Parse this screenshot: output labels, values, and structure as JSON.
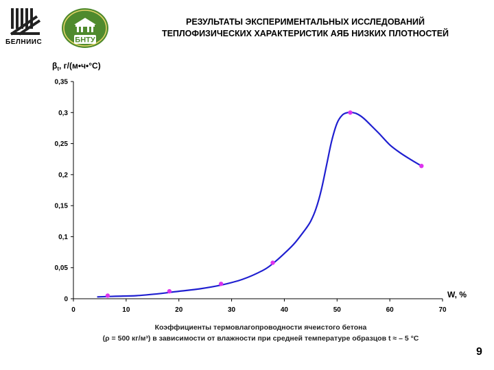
{
  "header": {
    "logo_left_text": "БЕЛНИИС",
    "logo_right_text": "БНТУ",
    "title_line1": "РЕЗУЛЬТАТЫ ЭКСПЕРИМЕНТАЛЬНЫХ ИССЛЕДОВАНИЙ",
    "title_line2": "ТЕПЛОФИЗИЧЕСКИХ ХАРАКТЕРИСТИК АЯБ НИЗКИХ ПЛОТНОСТЕЙ"
  },
  "chart_data": {
    "type": "line",
    "ylabel_symbol": "β",
    "ylabel_sub": "t",
    "ylabel_units": ", г/(м•ч•°С)",
    "xlabel": "W, %",
    "xlim": [
      0,
      70
    ],
    "ylim": [
      0,
      0.35
    ],
    "x_ticks": [
      "0",
      "10",
      "20",
      "30",
      "40",
      "50",
      "60",
      "70"
    ],
    "y_ticks": [
      "0",
      "0,05",
      "0,1",
      "0,15",
      "0,2",
      "0,25",
      "0,3",
      "0,35"
    ],
    "grid": false,
    "series": [
      {
        "curve_color": "#1f1fd0",
        "marker_color": "#dd33ee",
        "points": [
          {
            "x": 6.5,
            "y": 0.005
          },
          {
            "x": 18.2,
            "y": 0.012
          },
          {
            "x": 28,
            "y": 0.024
          },
          {
            "x": 37.8,
            "y": 0.058
          },
          {
            "x": 52.5,
            "y": 0.3
          },
          {
            "x": 66,
            "y": 0.214
          }
        ],
        "curve": [
          [
            4.5,
            0.003
          ],
          [
            8,
            0.004
          ],
          [
            12,
            0.005
          ],
          [
            16,
            0.008
          ],
          [
            20,
            0.012
          ],
          [
            24,
            0.016
          ],
          [
            28,
            0.022
          ],
          [
            32,
            0.031
          ],
          [
            36,
            0.046
          ],
          [
            38,
            0.058
          ],
          [
            40,
            0.073
          ],
          [
            42,
            0.09
          ],
          [
            44,
            0.112
          ],
          [
            45,
            0.125
          ],
          [
            46,
            0.145
          ],
          [
            47,
            0.175
          ],
          [
            48,
            0.215
          ],
          [
            49,
            0.255
          ],
          [
            50,
            0.283
          ],
          [
            51,
            0.296
          ],
          [
            52,
            0.3
          ],
          [
            53,
            0.3
          ],
          [
            54,
            0.297
          ],
          [
            55,
            0.291
          ],
          [
            56,
            0.283
          ],
          [
            58,
            0.266
          ],
          [
            60,
            0.248
          ],
          [
            62,
            0.235
          ],
          [
            64,
            0.224
          ],
          [
            66,
            0.214
          ]
        ]
      }
    ]
  },
  "caption": {
    "line1": "Коэффициенты термовлагопроводности ячеистого бетона",
    "line2": "(ρ = 500 кг/м³) в зависимости от влажности при средней температуре образцов t ≈ – 5 °С"
  },
  "page_number": "9"
}
